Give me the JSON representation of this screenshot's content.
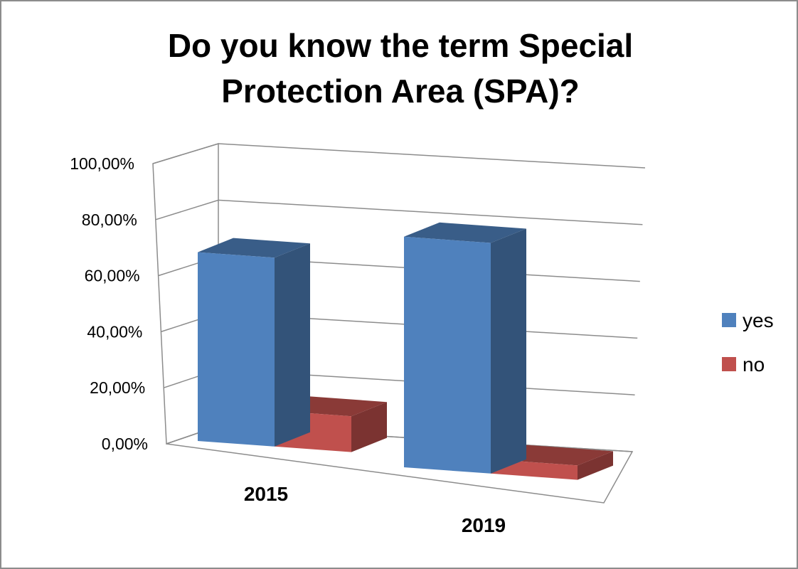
{
  "chart_data": {
    "type": "bar",
    "title_lines": [
      "Do you know the term Special",
      "Protection Area (SPA)?"
    ],
    "categories": [
      "2015",
      "2019"
    ],
    "series": [
      {
        "name": "yes",
        "values": [
          0.79,
          0.965
        ],
        "color": "#4f81bd"
      },
      {
        "name": "no",
        "values": [
          0.15,
          0.06
        ],
        "color": "#c0504d"
      }
    ],
    "y_ticks": [
      {
        "value": 0,
        "label": "0,00%"
      },
      {
        "value": 0.2,
        "label": "20,00%"
      },
      {
        "value": 0.4,
        "label": "40,00%"
      },
      {
        "value": 0.6,
        "label": "60,00%"
      },
      {
        "value": 0.8,
        "label": "80,00%"
      },
      {
        "value": 1.0,
        "label": "100,00%"
      }
    ],
    "ylim": [
      0,
      1
    ],
    "grid": true,
    "legend_position": "right",
    "style": "3d-clustered-column"
  }
}
